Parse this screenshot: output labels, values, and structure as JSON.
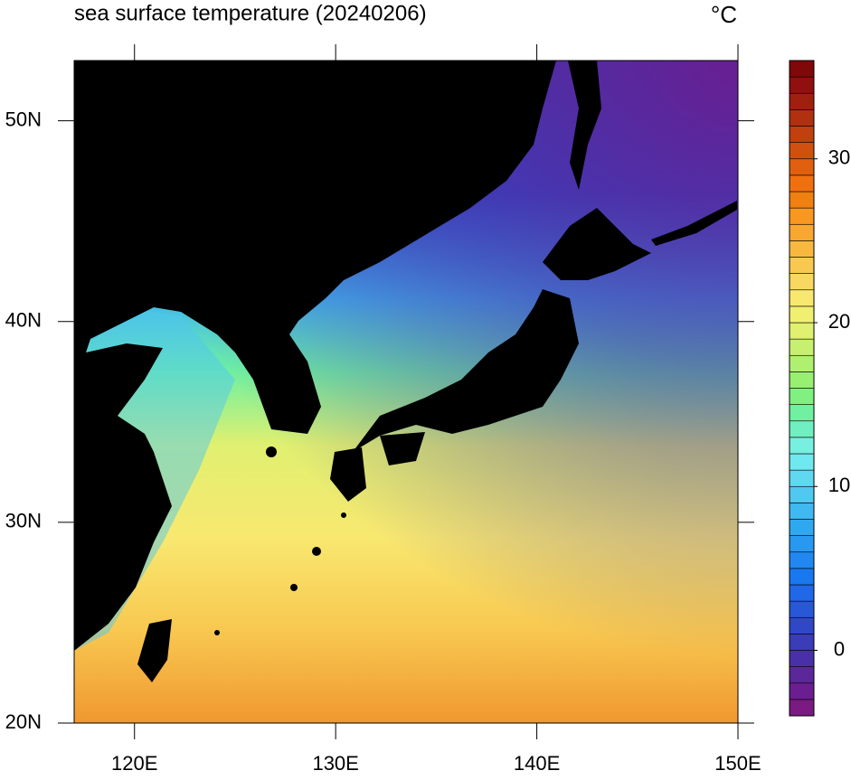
{
  "title": "sea surface temperature (20240206)",
  "unit": "°C",
  "map": {
    "xlim": [
      117,
      150
    ],
    "ylim": [
      20,
      53
    ],
    "xticks": [
      {
        "value": 120,
        "label": "120E"
      },
      {
        "value": 130,
        "label": "130E"
      },
      {
        "value": 140,
        "label": "140E"
      },
      {
        "value": 150,
        "label": "150E"
      }
    ],
    "yticks": [
      {
        "value": 20,
        "label": "20N"
      },
      {
        "value": 30,
        "label": "30N"
      },
      {
        "value": 40,
        "label": "40N"
      },
      {
        "value": 50,
        "label": "50N"
      }
    ]
  },
  "colorbar": {
    "lim": [
      -4,
      36
    ],
    "ticks": [
      0,
      10,
      20,
      30
    ],
    "colors": [
      "#7a1a82",
      "#6a1e90",
      "#5a2898",
      "#4a30a8",
      "#3a3cb8",
      "#3048c8",
      "#2858d8",
      "#2068e8",
      "#1878f0",
      "#2088f0",
      "#2898f0",
      "#30a8f0",
      "#40b8f0",
      "#50c8f0",
      "#60d8f0",
      "#70e8f0",
      "#78f0e0",
      "#70f0c0",
      "#70f0a0",
      "#80f080",
      "#98f070",
      "#b0f070",
      "#c8f070",
      "#e0f070",
      "#f0f070",
      "#f8e870",
      "#f8d860",
      "#f8c850",
      "#f8b840",
      "#f8a830",
      "#f89820",
      "#f08010",
      "#f07010",
      "#e06010",
      "#d05010",
      "#c04010",
      "#b03010",
      "#a02010",
      "#901010",
      "#800808"
    ]
  }
}
